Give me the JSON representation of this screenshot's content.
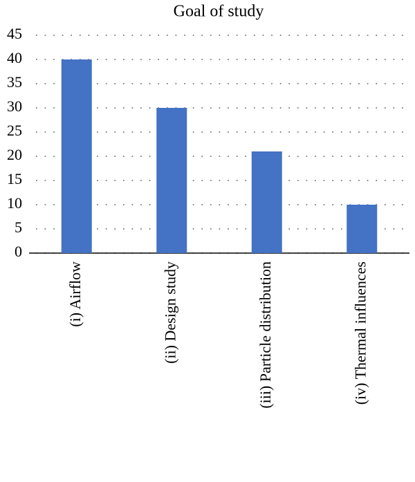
{
  "chart_data": {
    "type": "bar",
    "title": "Goal of study",
    "categories": [
      "(i) Airflow",
      "(ii) Design study",
      "(iii) Particle distribution",
      "(iv) Thermal influences"
    ],
    "values": [
      40,
      30,
      21,
      10
    ],
    "color": "#4472c4",
    "ylim": [
      0,
      45
    ],
    "yticks": [
      0,
      5,
      10,
      15,
      20,
      25,
      30,
      35,
      40,
      45
    ],
    "grid": true
  }
}
